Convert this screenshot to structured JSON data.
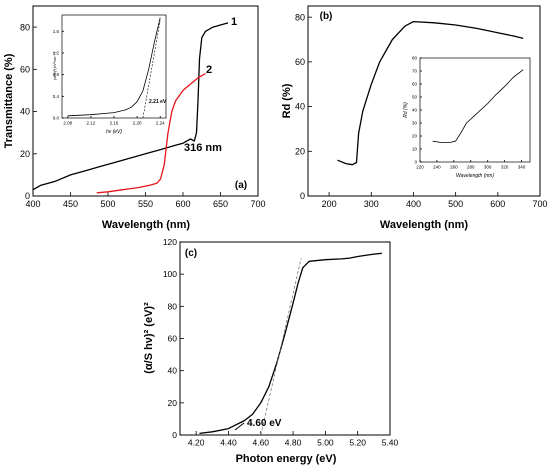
{
  "chart_data": [
    {
      "type": "line",
      "panel_label": "(a)",
      "xlabel": "Wavelength (nm)",
      "ylabel": "Transmittance (%)",
      "xlim": [
        400,
        700
      ],
      "ylim": [
        0,
        90
      ],
      "x_ticks": [
        400,
        450,
        500,
        550,
        600,
        650,
        700
      ],
      "y_ticks": [
        0,
        20,
        40,
        60,
        80
      ],
      "grid": false,
      "series": [
        {
          "name": "1",
          "color": "#000000",
          "x": [
            400,
            410,
            430,
            450,
            470,
            490,
            510,
            530,
            550,
            570,
            590,
            600,
            605,
            610,
            615,
            618,
            620,
            622,
            625,
            630,
            640,
            650,
            660
          ],
          "y": [
            3,
            5,
            7,
            10,
            12,
            14,
            16,
            18,
            20,
            22,
            24,
            25,
            26,
            27,
            26,
            30,
            45,
            65,
            75,
            78,
            80,
            81,
            82
          ]
        },
        {
          "name": "2",
          "color": "#e8141b",
          "x": [
            485,
            500,
            520,
            540,
            555,
            565,
            570,
            575,
            580,
            585,
            590,
            600,
            610,
            620,
            625,
            630
          ],
          "y": [
            1.5,
            2,
            3,
            4,
            5,
            6,
            8,
            15,
            30,
            40,
            45,
            50,
            53,
            56,
            57,
            58
          ]
        }
      ],
      "annotations": [
        "316 nm",
        "1",
        "2"
      ],
      "inset": {
        "xlabel": "hν (eV)",
        "ylabel": "(αhν)²(eV²cm⁻²)",
        "xlim": [
          2.07,
          2.25
        ],
        "ylim": [
          0,
          1.9
        ],
        "x_ticks": [
          "2.08",
          "2.12",
          "2.16",
          "2.20",
          "2.24"
        ],
        "y_ticks": [
          "0.0",
          "0.4",
          "0.8",
          "1.2",
          "1.6"
        ],
        "series": {
          "x": [
            2.08,
            2.12,
            2.16,
            2.18,
            2.19,
            2.2,
            2.21,
            2.22,
            2.23,
            2.24
          ],
          "y": [
            0.04,
            0.06,
            0.1,
            0.15,
            0.2,
            0.3,
            0.5,
            0.9,
            1.4,
            1.85
          ]
        },
        "fit_line": {
          "x": [
            2.21,
            2.24
          ],
          "y": [
            0.0,
            1.8
          ]
        },
        "annotation": "2.21 eV"
      }
    },
    {
      "type": "line",
      "panel_label": "(b)",
      "xlabel": "Wavelength (nm)",
      "ylabel": "Rd (%)",
      "xlim": [
        150,
        700
      ],
      "ylim": [
        0,
        85
      ],
      "x_ticks": [
        200,
        300,
        400,
        500,
        600,
        700
      ],
      "y_ticks": [
        0,
        20,
        40,
        60,
        80
      ],
      "grid": false,
      "series": [
        {
          "x": [
            220,
            240,
            255,
            265,
            270,
            280,
            300,
            320,
            350,
            380,
            400,
            450,
            500,
            550,
            600,
            640,
            660
          ],
          "y": [
            16,
            14.5,
            14,
            15,
            28,
            38,
            50,
            60,
            70,
            76,
            78,
            77.5,
            76.5,
            75,
            73,
            71.5,
            70.5
          ]
        }
      ],
      "inset": {
        "xlabel": "Wavelength (nm)",
        "ylabel": "Rd (%)",
        "xlim": [
          220,
          350
        ],
        "ylim": [
          0,
          80
        ],
        "x_ticks": [
          220,
          240,
          260,
          280,
          300,
          320,
          340
        ],
        "y_ticks": [
          0,
          10,
          20,
          30,
          40,
          50,
          60,
          70,
          80
        ],
        "series": {
          "x": [
            235,
            245,
            255,
            262,
            268,
            275,
            285,
            300,
            310,
            320,
            330,
            342
          ],
          "y": [
            16,
            15,
            15,
            16,
            22,
            30,
            36,
            45,
            52,
            58,
            65,
            71
          ]
        }
      }
    },
    {
      "type": "line",
      "panel_label": "(c)",
      "xlabel": "Photon energy (eV)",
      "ylabel": "(α/S hν)² (eV)²",
      "xlim": [
        4.1,
        5.4
      ],
      "ylim": [
        0,
        120
      ],
      "x_ticks": [
        "4.20",
        "4.40",
        "4.60",
        "4.80",
        "5.00",
        "5.20",
        "5.40"
      ],
      "y_ticks": [
        0,
        20,
        40,
        60,
        80,
        100,
        120
      ],
      "grid": false,
      "series": [
        {
          "x": [
            4.22,
            4.3,
            4.4,
            4.5,
            4.55,
            4.6,
            4.65,
            4.7,
            4.75,
            4.8,
            4.83,
            4.86,
            4.9,
            5.0,
            5.1,
            5.15,
            5.2,
            5.3,
            5.35
          ],
          "y": [
            1,
            2,
            4,
            9,
            13,
            20,
            30,
            45,
            63,
            82,
            94,
            104,
            108,
            109,
            109.5,
            110,
            111,
            112.5,
            113
          ]
        }
      ],
      "fit_line": {
        "x": [
          4.6,
          4.85
        ],
        "y": [
          0,
          110
        ]
      },
      "annotation": "4.60 eV"
    }
  ]
}
